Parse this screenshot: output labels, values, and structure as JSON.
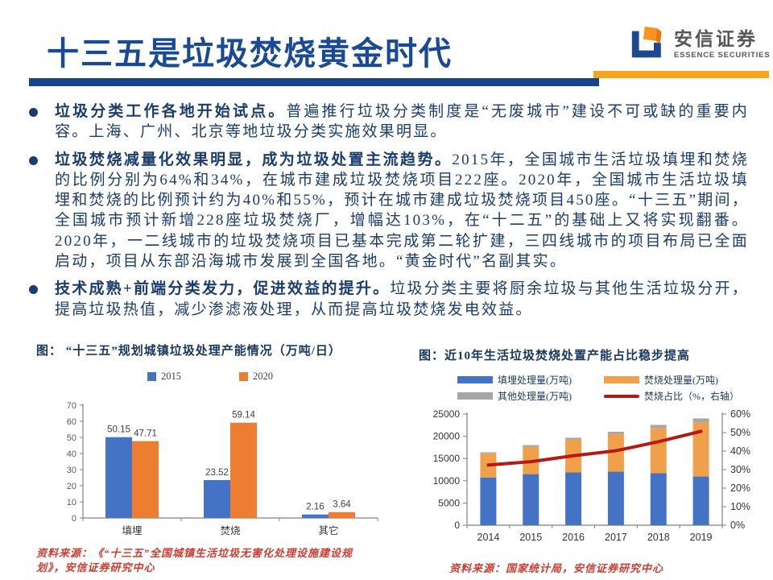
{
  "header": {
    "title": "十三五是垃圾焚烧黄金时代",
    "logo_cn": "安信证券",
    "logo_en": "ESSENCE SECURITIES"
  },
  "colors": {
    "title_blue": "#1B4A94",
    "divider_blue": "#16458B",
    "divider_orange": "#F8A31A",
    "body_navy": "#1B3C6E",
    "source_red": "#D23B2F",
    "bar_blue": "#4472C4",
    "bar_orange": "#ED7D31",
    "bar_light_orange": "#F0A04B",
    "bar_gray": "#A6A6A6",
    "line_red": "#B81814"
  },
  "bullets": [
    {
      "lead": "垃圾分类工作各地开始试点。",
      "text": "普遍推行垃圾分类制度是“无废城市”建设不可或缺的重要内容。上海、广州、北京等地垃圾分类实施效果明显。"
    },
    {
      "lead": "垃圾焚烧减量化效果明显，成为垃圾处置主流趋势。",
      "text": "2015年，全国城市生活垃圾填埋和焚烧的比例分别为64%和34%，在城市建成垃圾焚烧项目222座。2020年，全国城市生活垃圾填埋和焚烧的比例预计约为40%和55%，预计在城市建成垃圾焚烧项目450座。“十三五”期间，全国城市预计新增228座垃圾焚烧厂，增幅达103%，在“十二五”的基础上又将实现翻番。2020年，一二线城市的垃圾焚烧项目已基本完成第二轮扩建，三四线城市的项目布局已全面启动，项目从东部沿海城市发展到全国各地。“黄金时代”名副其实。"
    },
    {
      "lead": "技术成熟+前端分类发力，促进效益的提升。",
      "text": "垃圾分类主要将厨余垃圾与其他生活垃圾分开，提高垃圾热值，减少渗滤液处理，从而提高垃圾焚烧发电效益。"
    }
  ],
  "chart_data": [
    {
      "type": "bar",
      "title": "图： “十三五”规划城镇垃圾处理产能情况（万吨/日）",
      "categories": [
        "填埋",
        "焚烧",
        "其它"
      ],
      "series": [
        {
          "name": "2015",
          "color": "#4472C4",
          "values": [
            50.15,
            23.52,
            2.16
          ]
        },
        {
          "name": "2020",
          "color": "#ED7D31",
          "values": [
            47.71,
            59.14,
            3.64
          ]
        }
      ],
      "ylim": [
        0,
        70
      ],
      "yticks": [
        0,
        10,
        20,
        30,
        40,
        50,
        60,
        70
      ],
      "grid": false,
      "legend_position": "top",
      "source": "资料来源：《“十三五”全国城镇生活垃圾无害化处理设施建设规划》，安信证券研究中心"
    },
    {
      "type": "stacked-bar-line",
      "title": "图：近10年生活垃圾焚烧处置产能占比稳步提高",
      "categories": [
        "2014",
        "2015",
        "2016",
        "2017",
        "2018",
        "2019"
      ],
      "bar_series": [
        {
          "name": "填埋处理量(万吨)",
          "color": "#4472C4",
          "values": [
            10744,
            11483,
            11866,
            12038,
            11706,
            10948
          ]
        },
        {
          "name": "焚烧处理量(万吨)",
          "color": "#F0A04B",
          "values": [
            5330,
            6176,
            7378,
            8463,
            10185,
            12174
          ]
        },
        {
          "name": "其他处理量(万吨)",
          "color": "#A6A6A6",
          "values": [
            320,
            354,
            430,
            533,
            674,
            891
          ]
        }
      ],
      "line_series": {
        "name": "焚烧占比（%，右轴）",
        "color": "#B81814",
        "values": [
          32.5,
          34.3,
          37.5,
          40.2,
          45.1,
          50.7
        ]
      },
      "ylim_left": [
        0,
        25000
      ],
      "yticks_left": [
        0,
        5000,
        10000,
        15000,
        20000,
        25000
      ],
      "ylim_right": [
        0,
        60
      ],
      "yticks_right_labels": [
        "0%",
        "10%",
        "20%",
        "30%",
        "40%",
        "50%",
        "60%"
      ],
      "grid": false,
      "legend_position": "top",
      "source": "资料来源：国家统计局，安信证券研究中心"
    }
  ]
}
